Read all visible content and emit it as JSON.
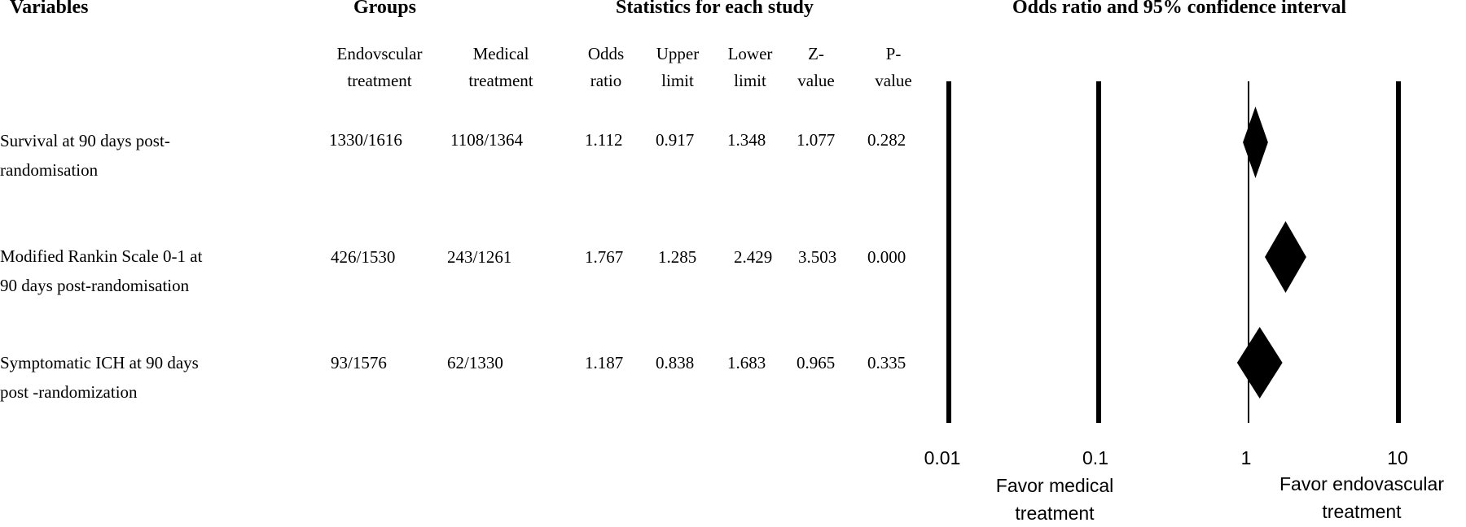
{
  "headers": {
    "variables": "Variables",
    "groups": "Groups",
    "statistics": "Statistics for each study",
    "forest": "Odds ratio and 95% confidence interval"
  },
  "subheaders": {
    "endo": [
      "Endovscular",
      "treatment"
    ],
    "medical": [
      "Medical",
      "treatment"
    ],
    "odds": [
      "Odds",
      "ratio"
    ],
    "upper": [
      "Upper",
      "limit"
    ],
    "lower": [
      "Lower",
      "limit"
    ],
    "z": [
      "Z-",
      "value"
    ],
    "p": [
      "P-",
      "value"
    ]
  },
  "rows": [
    {
      "label": [
        "Survival at 90 days post-",
        "randomisation"
      ],
      "endo": "1330/1616",
      "medical": "1108/1364",
      "odds": "1.112",
      "upper": "0.917",
      "lower": "1.348",
      "z": "1.077",
      "p": "0.282"
    },
    {
      "label": [
        "Modified Rankin Scale 0-1 at",
        "90 days post-randomisation"
      ],
      "endo": "426/1530",
      "medical": "243/1261",
      "odds": "1.767",
      "upper": "1.285",
      "lower": "2.429",
      "z": "3.503",
      "p": "0.000"
    },
    {
      "label": [
        "Symptomatic ICH at 90 days",
        "post -randomization"
      ],
      "endo": "93/1576",
      "medical": "62/1330",
      "odds": "1.187",
      "upper": "0.838",
      "lower": "1.683",
      "z": "0.965",
      "p": "0.335"
    }
  ],
  "axis": {
    "ticks": [
      "0.01",
      "0.1",
      "1",
      "10"
    ],
    "favor_left": [
      "Favor medical",
      "treatment"
    ],
    "favor_right": [
      "Favor endovascular",
      "treatment"
    ]
  },
  "chart_data": {
    "type": "forest",
    "title": "Odds ratio and 95% confidence interval",
    "x_scale": "log",
    "xlim": [
      0.01,
      10
    ],
    "x_ticks": [
      0.01,
      0.1,
      1,
      10
    ],
    "reference_line": 1,
    "categories": [
      "Survival at 90 days post-randomisation",
      "Modified Rankin Scale 0-1 at 90 days post-randomisation",
      "Symptomatic ICH at 90 days post -randomization"
    ],
    "odds_ratio": [
      1.112,
      1.767,
      1.187
    ],
    "upper_limit": [
      0.917,
      1.285,
      0.838
    ],
    "lower_limit": [
      1.348,
      2.429,
      1.683
    ]
  }
}
